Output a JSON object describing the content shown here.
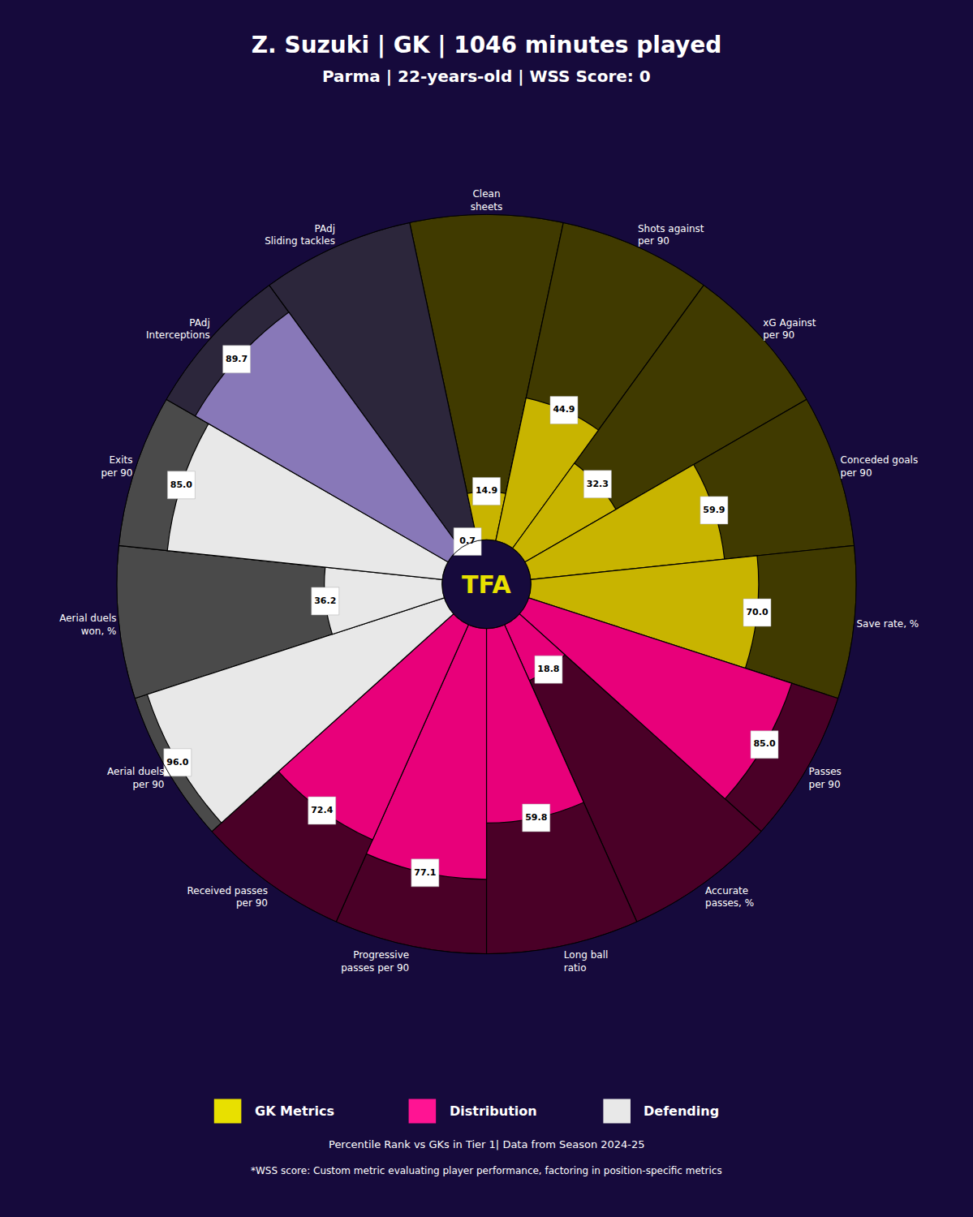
{
  "chart_data": {
    "type": "barpolar",
    "title": "Z. Suzuki | GK | 1046 minutes played",
    "subtitle": "Parma | 22-years-old | WSS Score: 0",
    "categories": [
      "Clean\nsheets",
      "Shots against\nper 90",
      "xG Against\nper 90",
      "Conceded goals\nper 90",
      "Save rate, %",
      "Passes\nper 90",
      "Accurate\npasses, %",
      "Long ball\nratio",
      "Progressive\npasses per 90",
      "Received passes\nper 90",
      "Aerial duels\nper 90",
      "Aerial duels\nwon, %",
      "Exits\nper 90",
      "PAdj\nInterceptions",
      "PAdj\nSliding tackles"
    ],
    "values": [
      14.9,
      44.9,
      32.3,
      59.9,
      70.0,
      85.0,
      18.8,
      59.8,
      77.1,
      72.4,
      96.0,
      36.2,
      85.0,
      89.7,
      0.7
    ],
    "value_labels": [
      "14.9",
      "44.9",
      "32.3",
      "59.9",
      "70.0",
      "85.0",
      "18.8",
      "59.8",
      "77.1",
      "72.4",
      "96.0",
      "36.2",
      "85.0",
      "89.7",
      "0.7"
    ],
    "colors": [
      "#c8b400",
      "#c8b400",
      "#c8b400",
      "#c8b400",
      "#c8b400",
      "#e8007a",
      "#e8007a",
      "#e8007a",
      "#e8007a",
      "#e8007a",
      "#e8e8e8",
      "#e8e8e8",
      "#e8e8e8",
      "#8878b8",
      "#8878b8"
    ],
    "ylim": [
      0,
      100
    ],
    "yticks": [
      25,
      50,
      75,
      100
    ],
    "grid": true,
    "tick_labels": false,
    "data_labels": true,
    "legend_items": [
      {
        "name": "GK Metrics",
        "color": "#e8e000"
      },
      {
        "name": "Distribution",
        "color": "#ff1493"
      },
      {
        "name": "Defending",
        "color": "#e8e8e8"
      }
    ],
    "center_label": {
      "text": "TFA",
      "color": "#e8e000"
    },
    "footnotes": [
      "Percentile Rank vs GKs in Tier 1| Data from Season 2024-25",
      "*WSS score: Custom metric evaluating player performance, factoring in position-specific metrics"
    ],
    "background": "#160a3c"
  }
}
